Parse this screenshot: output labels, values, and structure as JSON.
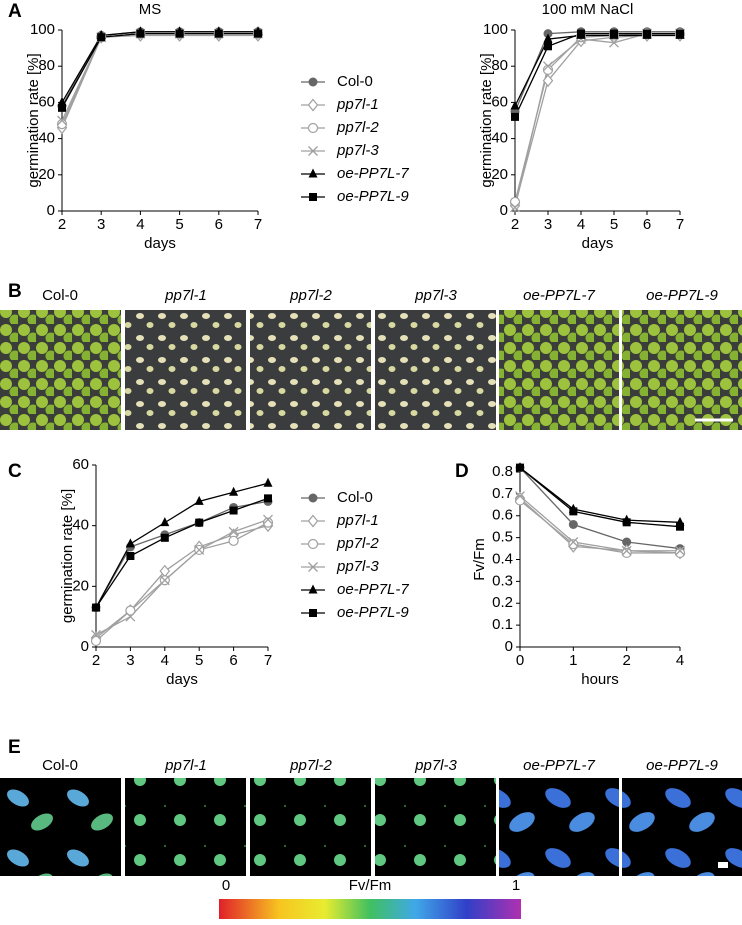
{
  "panel_labels": [
    "A",
    "B",
    "C",
    "D",
    "E"
  ],
  "photos_b": {
    "labels": [
      "Col-0",
      "pp7l-1",
      "pp7l-2",
      "pp7l-3",
      "oe-PP7L-7",
      "oe-PP7L-9"
    ]
  },
  "photos_e": {
    "labels": [
      "Col-0",
      "pp7l-1",
      "pp7l-2",
      "pp7l-3",
      "oe-PP7L-7",
      "oe-PP7L-9"
    ]
  },
  "colorbar": {
    "label": "Fv/Fm",
    "ticks": [
      0,
      1
    ]
  },
  "chart_data": [
    {
      "type": "line",
      "title": "MS",
      "xlabel": "days",
      "ylabel": "germination rate [%]",
      "legend": true,
      "x": [
        2,
        3,
        4,
        5,
        6,
        7
      ],
      "xlim": [
        2,
        7
      ],
      "xticks": [
        2,
        3,
        4,
        5,
        6,
        7
      ],
      "ylim": [
        0,
        100
      ],
      "yticks": [
        0,
        20,
        40,
        60,
        80,
        100
      ],
      "series": [
        {
          "name": "Col-0",
          "color": "#666666",
          "marker": "circle",
          "values": [
            58,
            97,
            99,
            99,
            99,
            99
          ]
        },
        {
          "name": "pp7l-1",
          "color": "#a0a0a0",
          "marker": "diamond-open",
          "values": [
            46,
            96,
            97,
            97,
            97,
            97
          ]
        },
        {
          "name": "pp7l-2",
          "color": "#a0a0a0",
          "marker": "circle-open",
          "values": [
            48,
            96,
            98,
            98,
            98,
            98
          ]
        },
        {
          "name": "pp7l-3",
          "color": "#a0a0a0",
          "marker": "x",
          "values": [
            50,
            96,
            98,
            98,
            98,
            98
          ]
        },
        {
          "name": "oe-PP7L-7",
          "color": "#000000",
          "marker": "triangle",
          "values": [
            60,
            97,
            99,
            99,
            99,
            99
          ]
        },
        {
          "name": "oe-PP7L-9",
          "color": "#000000",
          "marker": "square",
          "values": [
            57,
            96,
            98,
            98,
            98,
            98
          ]
        }
      ]
    },
    {
      "type": "line",
      "title": "100 mM NaCl",
      "xlabel": "days",
      "ylabel": "germination rate [%]",
      "legend": false,
      "x": [
        2,
        3,
        4,
        5,
        6,
        7
      ],
      "xlim": [
        2,
        7
      ],
      "xticks": [
        2,
        3,
        4,
        5,
        6,
        7
      ],
      "ylim": [
        0,
        100
      ],
      "yticks": [
        0,
        20,
        40,
        60,
        80,
        100
      ],
      "series": [
        {
          "name": "Col-0",
          "color": "#666666",
          "marker": "circle",
          "values": [
            55,
            98,
            99,
            99,
            99,
            99
          ]
        },
        {
          "name": "pp7l-1",
          "color": "#a0a0a0",
          "marker": "diamond-open",
          "values": [
            3,
            72,
            94,
            96,
            97,
            97
          ]
        },
        {
          "name": "pp7l-2",
          "color": "#a0a0a0",
          "marker": "circle-open",
          "values": [
            5,
            78,
            96,
            97,
            98,
            98
          ]
        },
        {
          "name": "pp7l-3",
          "color": "#a0a0a0",
          "marker": "x",
          "values": [
            2,
            80,
            95,
            93,
            98,
            98
          ]
        },
        {
          "name": "oe-PP7L-7",
          "color": "#000000",
          "marker": "triangle",
          "values": [
            58,
            95,
            97,
            97,
            97,
            97
          ]
        },
        {
          "name": "oe-PP7L-9",
          "color": "#000000",
          "marker": "square",
          "values": [
            52,
            91,
            98,
            98,
            98,
            98
          ]
        }
      ]
    },
    {
      "type": "line",
      "xlabel": "days",
      "ylabel": "germination rate [%]",
      "legend": true,
      "x": [
        2,
        3,
        4,
        5,
        6,
        7
      ],
      "xlim": [
        2,
        7
      ],
      "xticks": [
        2,
        3,
        4,
        5,
        6,
        7
      ],
      "ylim": [
        0,
        60
      ],
      "yticks": [
        0,
        20,
        40,
        60
      ],
      "series": [
        {
          "name": "Col-0",
          "color": "#666666",
          "marker": "circle",
          "values": [
            13,
            33,
            37,
            41,
            46,
            48
          ]
        },
        {
          "name": "pp7l-1",
          "color": "#a0a0a0",
          "marker": "diamond-open",
          "values": [
            3,
            12,
            25,
            33,
            37,
            40
          ]
        },
        {
          "name": "pp7l-2",
          "color": "#a0a0a0",
          "marker": "circle-open",
          "values": [
            2,
            12,
            22,
            32,
            35,
            41
          ]
        },
        {
          "name": "pp7l-3",
          "color": "#a0a0a0",
          "marker": "x",
          "values": [
            4,
            10,
            22,
            32,
            38,
            42
          ]
        },
        {
          "name": "oe-PP7L-7",
          "color": "#000000",
          "marker": "triangle",
          "values": [
            13,
            34,
            41,
            48,
            51,
            54
          ]
        },
        {
          "name": "oe-PP7L-9",
          "color": "#000000",
          "marker": "square",
          "values": [
            13,
            30,
            36,
            41,
            45,
            49
          ]
        }
      ]
    },
    {
      "type": "line",
      "xlabel": "hours",
      "ylabel": "Fv/Fm",
      "legend": false,
      "categories": [
        "0",
        "1",
        "2",
        "4"
      ],
      "ylim": [
        0,
        0.8
      ],
      "yticks": [
        0,
        0.1,
        0.2,
        0.3,
        0.4,
        0.5,
        0.6,
        0.7,
        0.8
      ],
      "series": [
        {
          "name": "Col-0",
          "color": "#666666",
          "marker": "circle",
          "values": [
            0.82,
            0.56,
            0.48,
            0.45
          ]
        },
        {
          "name": "pp7l-1",
          "color": "#a0a0a0",
          "marker": "diamond-open",
          "values": [
            0.68,
            0.46,
            0.44,
            0.43
          ]
        },
        {
          "name": "pp7l-2",
          "color": "#a0a0a0",
          "marker": "circle-open",
          "values": [
            0.67,
            0.47,
            0.43,
            0.43
          ]
        },
        {
          "name": "pp7l-3",
          "color": "#a0a0a0",
          "marker": "x",
          "values": [
            0.69,
            0.48,
            0.44,
            0.44
          ]
        },
        {
          "name": "oe-PP7L-7",
          "color": "#000000",
          "marker": "triangle",
          "values": [
            0.82,
            0.63,
            0.58,
            0.57
          ]
        },
        {
          "name": "oe-PP7L-9",
          "color": "#000000",
          "marker": "square",
          "values": [
            0.82,
            0.62,
            0.57,
            0.55
          ]
        }
      ]
    }
  ]
}
